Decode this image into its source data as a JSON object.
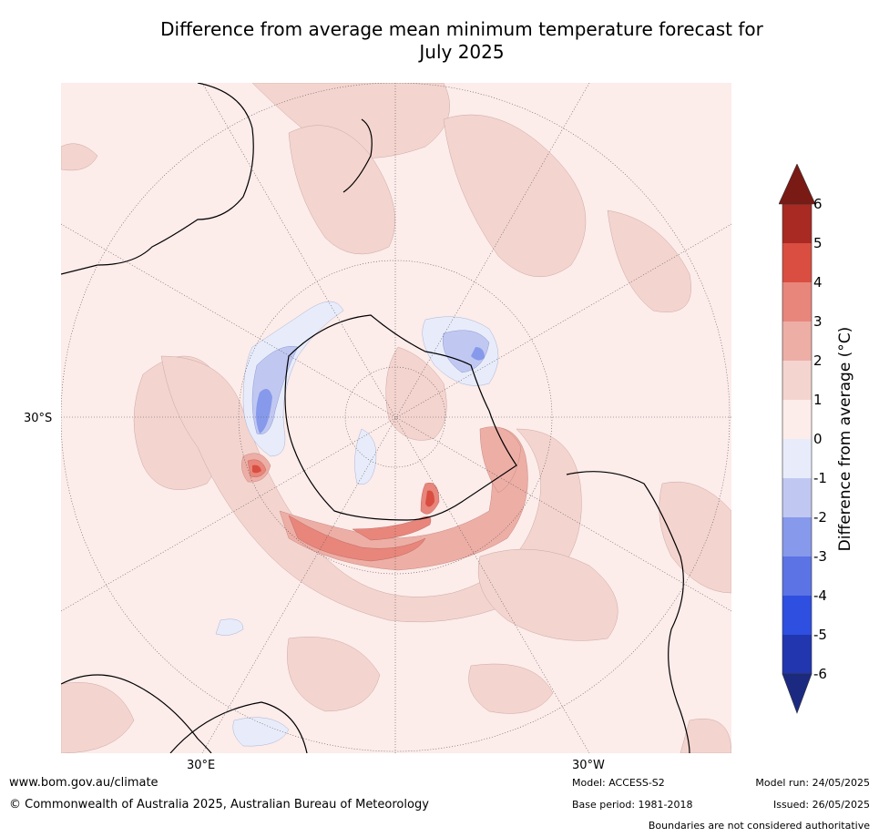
{
  "title_line1": "Difference from average mean minimum temperature forecast for",
  "title_line2": "July 2025",
  "map": {
    "projection": "south-polar-stereographic",
    "labels": {
      "lat": "30°S",
      "lon_left": "30°E",
      "lon_right": "30°W"
    },
    "background_color": "#fcecea"
  },
  "colorbar": {
    "title": "Difference from average (°C)",
    "ticks": [
      "6",
      "5",
      "4",
      "3",
      "2",
      "1",
      "0",
      "-1",
      "-2",
      "-3",
      "-4",
      "-5",
      "-6"
    ],
    "bands": [
      {
        "range": "> 6",
        "color": "#7a1a14"
      },
      {
        "range": "5 to 6",
        "color": "#a82a22"
      },
      {
        "range": "4 to 5",
        "color": "#d94e40"
      },
      {
        "range": "3 to 4",
        "color": "#e8867c"
      },
      {
        "range": "2 to 3",
        "color": "#edaea6"
      },
      {
        "range": "1 to 2",
        "color": "#f4d4cf"
      },
      {
        "range": "0 to 1",
        "color": "#fcecea"
      },
      {
        "range": "-1 to 0",
        "color": "#e8ecfa"
      },
      {
        "range": "-2 to -1",
        "color": "#c0c8f2"
      },
      {
        "range": "-3 to -2",
        "color": "#8799ea"
      },
      {
        "range": "-4 to -3",
        "color": "#5b73e4"
      },
      {
        "range": "-5 to -4",
        "color": "#2e4fe0"
      },
      {
        "range": "-6 to -5",
        "color": "#2236b0"
      },
      {
        "range": "< -6",
        "color": "#1b2a80"
      }
    ]
  },
  "footer": {
    "website": "www.bom.gov.au/climate",
    "copyright": "© Commonwealth of Australia 2025, Australian Bureau of Meteorology",
    "model": "Model: ACCESS-S2",
    "base_period": "Base period: 1981-2018",
    "model_run": "Model run: 24/05/2025",
    "issued": "Issued: 26/05/2025",
    "boundaries": "Boundaries are not considered authoritative"
  }
}
